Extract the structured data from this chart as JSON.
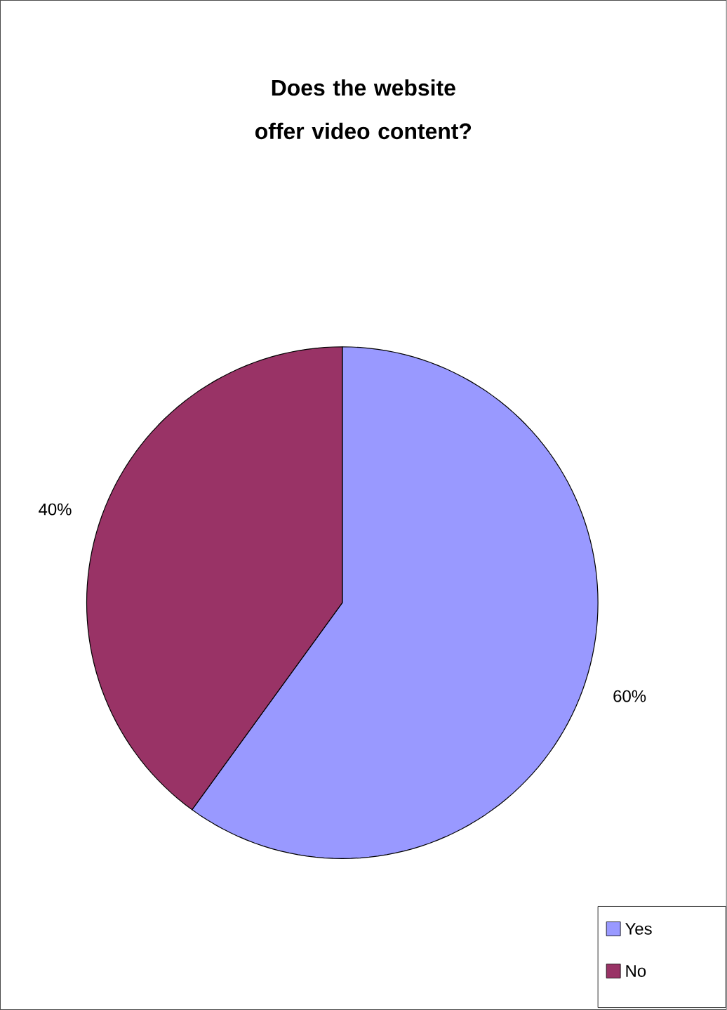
{
  "chart_data": {
    "type": "pie",
    "title": "Does the website offer video content?",
    "categories": [
      "Yes",
      "No"
    ],
    "values": [
      60,
      40
    ],
    "colors": [
      "#9999ff",
      "#993366"
    ],
    "value_labels": [
      "60%",
      "40%"
    ],
    "legend": "bottom right"
  }
}
